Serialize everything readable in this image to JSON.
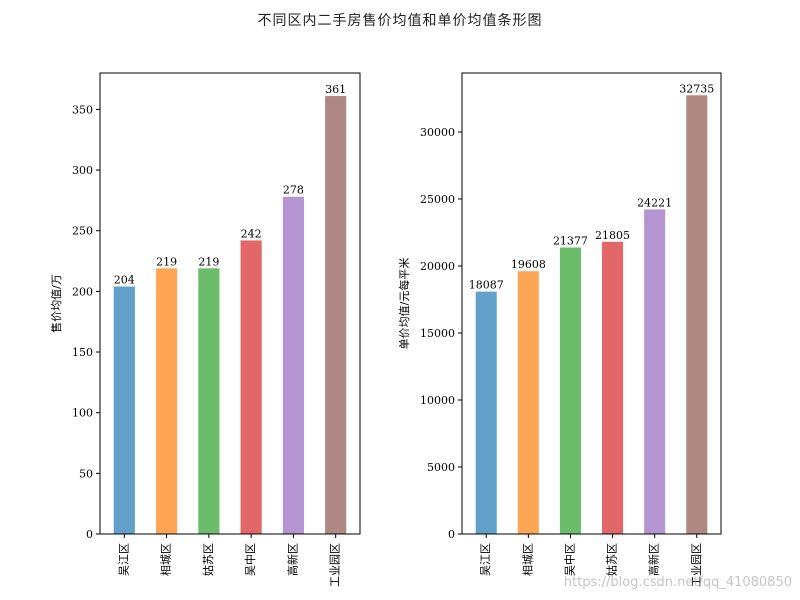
{
  "figure": {
    "title": "不同区内二手房售价均值和单价均值条形图",
    "watermark": "https://blog.csdn.net/qq_41080850"
  },
  "colors": [
    "#1f77b4",
    "#ff7f0e",
    "#2ca02c",
    "#d62728",
    "#9467bd",
    "#8c564b"
  ],
  "chart_data": [
    {
      "type": "bar",
      "categories": [
        "吴江区",
        "相城区",
        "姑苏区",
        "吴中区",
        "高新区",
        "工业园区"
      ],
      "values": [
        204,
        219,
        219,
        242,
        278,
        361
      ],
      "ylabel": "售价均值/万",
      "ylim": [
        0,
        380
      ],
      "yticks": [
        0,
        50,
        100,
        150,
        200,
        250,
        300,
        350
      ],
      "grid": false,
      "bar_alpha": 0.7
    },
    {
      "type": "bar",
      "categories": [
        "吴江区",
        "相城区",
        "吴中区",
        "姑苏区",
        "高新区",
        "工业园区"
      ],
      "values": [
        18087,
        19608,
        21377,
        21805,
        24221,
        32735
      ],
      "ylabel": "单价均值/元每平米",
      "ylim": [
        0,
        34400
      ],
      "yticks": [
        0,
        5000,
        10000,
        15000,
        20000,
        25000,
        30000
      ],
      "grid": false,
      "bar_alpha": 0.7
    }
  ]
}
